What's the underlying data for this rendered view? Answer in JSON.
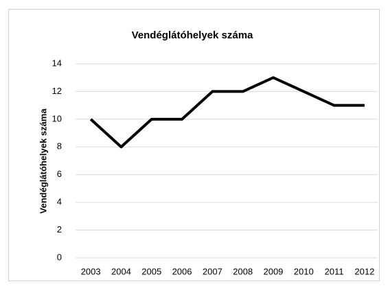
{
  "chart_data": {
    "type": "line",
    "title": "Vendéglátóhelyek száma",
    "y_label": "Vendéglátóhelyek száma",
    "categories": [
      "2003",
      "2004",
      "2005",
      "2006",
      "2007",
      "2008",
      "2009",
      "2010",
      "2011",
      "2012"
    ],
    "values": [
      10,
      8,
      10,
      10,
      12,
      12,
      13,
      12,
      11,
      11
    ],
    "color": "#000000",
    "ylim": [
      0,
      14
    ],
    "yticks": [
      0,
      2,
      4,
      6,
      8,
      10,
      12,
      14
    ],
    "grid": true
  }
}
